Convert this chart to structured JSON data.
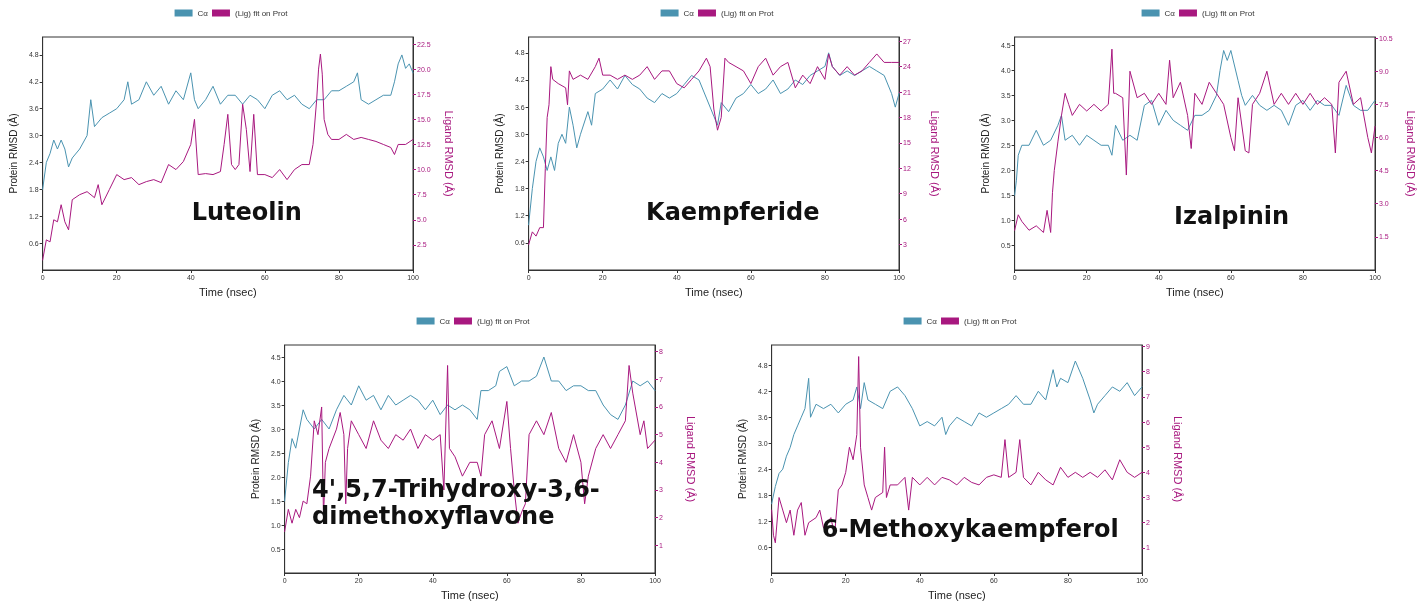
{
  "chart_data": [
    {
      "type": "line",
      "xlabel": "Time (nsec)",
      "ylabel": "Protein RMSD (Å)",
      "y2label": "Ligand RMSD (Å)",
      "annotations": [
        "Luteolin"
      ],
      "legend": "top",
      "grid": false,
      "marker": "none",
      "line_style": "solid",
      "xlim": [
        0,
        100
      ],
      "xticks": [
        0,
        20,
        40,
        60,
        80,
        100
      ],
      "ylim": [
        0,
        5.2
      ],
      "yticks": [
        0.6,
        1.2,
        1.8,
        2.4,
        {
          "value": 3,
          "label": "3.0"
        },
        3.6,
        4.2,
        4.8
      ],
      "y2lim": [
        0,
        23.2
      ],
      "y2ticks": [
        2.5,
        {
          "value": 5,
          "label": "5.0"
        },
        7.5,
        {
          "value": 10,
          "label": "10.0"
        },
        12.5,
        {
          "value": 15,
          "label": "15.0"
        },
        17.5,
        {
          "value": 20,
          "label": "20.0"
        },
        22.5
      ],
      "series": [
        {
          "name": "Cα",
          "color": "#4a93b0",
          "x": [
            0,
            1,
            2,
            3,
            4,
            5,
            6,
            7,
            8,
            10,
            12,
            13,
            14,
            16,
            18,
            20,
            22,
            23,
            24,
            26,
            28,
            30,
            32,
            34,
            36,
            38,
            40,
            41,
            42,
            44,
            46,
            48,
            50,
            52,
            54,
            56,
            58,
            60,
            62,
            64,
            66,
            68,
            70,
            72,
            74,
            76,
            78,
            80,
            82,
            84,
            85,
            86,
            88,
            90,
            92,
            94,
            95,
            96,
            97,
            98,
            99,
            100
          ],
          "values": [
            1.8,
            2.4,
            2.6,
            2.9,
            2.7,
            2.9,
            2.7,
            2.3,
            2.5,
            2.7,
            3.0,
            3.8,
            3.2,
            3.4,
            3.5,
            3.6,
            3.8,
            4.2,
            3.7,
            3.8,
            4.2,
            3.9,
            4.1,
            3.7,
            4.0,
            3.8,
            4.4,
            3.8,
            3.6,
            3.8,
            4.1,
            3.7,
            3.9,
            3.9,
            3.7,
            3.9,
            3.8,
            3.6,
            3.9,
            4.0,
            3.8,
            3.9,
            3.7,
            3.6,
            3.8,
            3.8,
            4.0,
            4.0,
            4.1,
            4.2,
            4.4,
            3.8,
            3.7,
            3.8,
            3.9,
            3.9,
            4.2,
            4.6,
            4.8,
            4.5,
            4.6,
            4.4
          ]
        },
        {
          "name": "(Lig) fit on Prot",
          "color": "#a8187f",
          "axis": "y2",
          "x": [
            0,
            1,
            2,
            3,
            4,
            5,
            6,
            7,
            8,
            10,
            12,
            14,
            15,
            16,
            18,
            20,
            22,
            24,
            26,
            28,
            30,
            32,
            34,
            36,
            38,
            40,
            41,
            42,
            44,
            46,
            48,
            49,
            50,
            51,
            52,
            53,
            54,
            55,
            56,
            57,
            58,
            60,
            62,
            64,
            66,
            68,
            70,
            72,
            73,
            74,
            74.5,
            75,
            75.5,
            76,
            77,
            78,
            80,
            82,
            84,
            86,
            88,
            90,
            92,
            94,
            95,
            96,
            98,
            100
          ],
          "values": [
            1.0,
            3.0,
            2.8,
            5.0,
            4.8,
            6.5,
            4.8,
            4.0,
            7.0,
            7.5,
            7.8,
            7.2,
            8.5,
            6.5,
            8.0,
            9.5,
            9.0,
            9.2,
            8.5,
            8.8,
            9.0,
            8.7,
            10.5,
            10.0,
            10.8,
            12.5,
            15.0,
            9.5,
            9.6,
            9.5,
            9.8,
            12.5,
            15.5,
            10.5,
            10.0,
            10.5,
            16.5,
            14.0,
            9.8,
            15.5,
            9.5,
            9.5,
            9.2,
            10.0,
            9.0,
            10.0,
            10.5,
            10.5,
            12.5,
            17.0,
            20.0,
            21.5,
            19.5,
            15.0,
            13.5,
            13.0,
            13.0,
            13.5,
            13.0,
            13.2,
            13.0,
            12.8,
            12.5,
            12.2,
            11.5,
            12.5,
            12.5,
            13.0
          ]
        }
      ]
    },
    {
      "type": "line",
      "xlabel": "Time (nsec)",
      "ylabel": "Protein RMSD (Å)",
      "y2label": "Ligand RMSD (Å)",
      "annotations": [
        "Kaempferide"
      ],
      "legend": "top",
      "grid": false,
      "marker": "none",
      "line_style": "solid",
      "xlim": [
        0,
        100
      ],
      "xticks": [
        0,
        20,
        40,
        60,
        80,
        100
      ],
      "ylim": [
        0,
        5.15
      ],
      "yticks": [
        0.6,
        1.2,
        1.8,
        2.4,
        {
          "value": 3,
          "label": "3.0"
        },
        3.6,
        4.2,
        4.8
      ],
      "y2lim": [
        0,
        27.5
      ],
      "y2ticks": [
        3,
        6,
        9,
        12,
        15,
        18,
        21,
        24,
        27
      ],
      "series": [
        {
          "name": "Cα",
          "color": "#4a93b0",
          "x": [
            0,
            1,
            2,
            3,
            4,
            5,
            6,
            7,
            8,
            9,
            10,
            11,
            12,
            13,
            14,
            16,
            17,
            18,
            20,
            22,
            24,
            26,
            28,
            30,
            32,
            34,
            36,
            38,
            40,
            42,
            44,
            46,
            48,
            50,
            51,
            52,
            54,
            56,
            58,
            60,
            62,
            64,
            66,
            68,
            70,
            72,
            74,
            76,
            78,
            80,
            81,
            82,
            84,
            86,
            88,
            90,
            92,
            94,
            96,
            98,
            99,
            100
          ],
          "values": [
            1.0,
            1.8,
            2.4,
            2.7,
            2.5,
            2.2,
            2.5,
            2.2,
            2.8,
            3.0,
            2.8,
            3.6,
            3.2,
            2.7,
            3.0,
            3.5,
            3.2,
            3.9,
            4.0,
            4.2,
            4.0,
            4.3,
            4.1,
            4.0,
            3.8,
            3.7,
            3.9,
            3.8,
            3.9,
            4.1,
            4.3,
            4.2,
            3.8,
            3.4,
            3.2,
            3.7,
            3.5,
            3.8,
            3.9,
            4.1,
            3.9,
            4.0,
            4.2,
            3.9,
            4.0,
            4.2,
            4.1,
            4.3,
            4.4,
            4.5,
            4.8,
            4.5,
            4.3,
            4.4,
            4.3,
            4.4,
            4.5,
            4.4,
            4.3,
            3.9,
            3.6,
            3.9
          ]
        },
        {
          "name": "(Lig) fit on Prot",
          "color": "#a8187f",
          "axis": "y2",
          "x": [
            0,
            1,
            2,
            3,
            4,
            4.5,
            5,
            5.5,
            6,
            6.5,
            8,
            10,
            10.5,
            11,
            12,
            14,
            16,
            18,
            19,
            20,
            22,
            24,
            26,
            28,
            30,
            32,
            34,
            36,
            38,
            40,
            42,
            44,
            46,
            48,
            49,
            50,
            51,
            52,
            53,
            54,
            56,
            58,
            60,
            62,
            64,
            66,
            68,
            70,
            72,
            74,
            76,
            78,
            80,
            81,
            82,
            84,
            86,
            88,
            90,
            92,
            94,
            96,
            98,
            100
          ],
          "values": [
            3.0,
            4.5,
            4.0,
            5.0,
            5.0,
            12,
            18,
            19.5,
            24.0,
            22.5,
            22.0,
            21.5,
            19.5,
            23.5,
            22.5,
            23.0,
            22.5,
            24.0,
            25.0,
            23.0,
            23.0,
            22.5,
            23.0,
            22.5,
            23.0,
            24.0,
            22.5,
            23.5,
            23.5,
            22.0,
            21.5,
            22.5,
            23.5,
            25.0,
            24.0,
            19.0,
            16.5,
            18.0,
            25.0,
            24.5,
            24.0,
            23.5,
            22.0,
            24.0,
            25.0,
            23.0,
            24.0,
            24.5,
            21.5,
            23.0,
            22.0,
            24.0,
            22.5,
            25.5,
            24.0,
            23.0,
            24.0,
            23.0,
            23.5,
            24.5,
            25.5,
            24.5,
            24.5,
            24.5
          ]
        }
      ]
    },
    {
      "type": "line",
      "xlabel": "Time (nsec)",
      "ylabel": "Protein RMSD (Å)",
      "y2label": "Ligand RMSD (Å)",
      "annotations": [
        "Izalpinin"
      ],
      "legend": "top",
      "grid": false,
      "marker": "none",
      "line_style": "solid",
      "xlim": [
        0,
        100
      ],
      "xticks": [
        0,
        20,
        40,
        60,
        80,
        100
      ],
      "ylim": [
        0,
        4.67
      ],
      "yticks": [
        0.5,
        {
          "value": 1,
          "label": "1.0"
        },
        1.5,
        {
          "value": 2,
          "label": "2.0"
        },
        2.5,
        {
          "value": 3,
          "label": "3.0"
        },
        3.5,
        {
          "value": 4,
          "label": "4.0"
        },
        4.5
      ],
      "y2lim": [
        0,
        10.55
      ],
      "y2ticks": [
        1.5,
        {
          "value": 3,
          "label": "3.0"
        },
        4.5,
        {
          "value": 6,
          "label": "6.0"
        },
        7.5,
        {
          "value": 9,
          "label": "9.0"
        },
        10.5
      ],
      "series": [
        {
          "name": "Cα",
          "color": "#4a93b0",
          "x": [
            0,
            0.5,
            1,
            2,
            4,
            6,
            8,
            10,
            12,
            13,
            14,
            16,
            18,
            20,
            22,
            24,
            26,
            27,
            28,
            30,
            32,
            34,
            36,
            38,
            40,
            42,
            44,
            46,
            48,
            50,
            52,
            54,
            56,
            57,
            58,
            59,
            60,
            62,
            63,
            64,
            66,
            68,
            70,
            72,
            74,
            76,
            78,
            80,
            82,
            84,
            86,
            88,
            90,
            92,
            94,
            96,
            98,
            100
          ],
          "values": [
            1.5,
            1.8,
            2.3,
            2.5,
            2.5,
            2.8,
            2.5,
            2.6,
            2.9,
            3.1,
            2.6,
            2.7,
            2.5,
            2.7,
            2.6,
            2.5,
            2.5,
            2.3,
            2.9,
            2.6,
            2.7,
            2.6,
            3.3,
            3.4,
            2.9,
            3.2,
            3.0,
            2.9,
            2.8,
            3.1,
            3.1,
            3.2,
            3.5,
            4.0,
            4.4,
            4.2,
            4.4,
            3.8,
            3.5,
            3.3,
            3.5,
            3.3,
            3.2,
            3.3,
            3.2,
            2.9,
            3.3,
            3.4,
            3.2,
            3.4,
            3.3,
            3.3,
            3.1,
            3.7,
            3.3,
            3.2,
            3.2,
            3.4
          ]
        },
        {
          "name": "(Lig) fit on Prot",
          "color": "#a8187f",
          "axis": "y2",
          "x": [
            0,
            1,
            2,
            4,
            6,
            8,
            9,
            10,
            10.5,
            11,
            12,
            13,
            14,
            15,
            16,
            18,
            20,
            22,
            24,
            26,
            27,
            27.5,
            28,
            30,
            31,
            32,
            34,
            36,
            38,
            40,
            42,
            43,
            44,
            46,
            48,
            49,
            50,
            52,
            54,
            56,
            58,
            60,
            61,
            62,
            64,
            65,
            66,
            68,
            70,
            72,
            74,
            76,
            78,
            80,
            82,
            84,
            86,
            88,
            89,
            90,
            92,
            94,
            96,
            98,
            99,
            100
          ],
          "values": [
            1.8,
            2.5,
            2.2,
            1.8,
            2.0,
            1.7,
            2.7,
            1.7,
            3.5,
            4.5,
            5.8,
            7.0,
            8.0,
            7.5,
            7.0,
            7.5,
            7.2,
            7.5,
            7.2,
            7.5,
            10.0,
            8.0,
            8.0,
            7.8,
            4.3,
            9.0,
            7.8,
            8.0,
            7.5,
            8.0,
            7.5,
            9.5,
            7.8,
            8.5,
            7.0,
            5.5,
            8.0,
            7.5,
            8.5,
            8.0,
            7.5,
            6.0,
            5.4,
            7.8,
            5.4,
            5.3,
            7.5,
            8.0,
            9.0,
            7.5,
            8.0,
            7.5,
            8.0,
            7.5,
            8.0,
            7.5,
            7.8,
            7.5,
            5.3,
            8.5,
            9.0,
            7.5,
            7.8,
            6.0,
            5.3,
            6.5
          ]
        }
      ]
    },
    {
      "type": "line",
      "xlabel": "Time (nsec)",
      "ylabel": "Protein RMSD (Å)",
      "y2label": "Ligand RMSD (Å)",
      "annotations": [
        "4',5,7-Trihydroxy-3,6-\ndimethoxyflavone"
      ],
      "legend": "top",
      "grid": false,
      "marker": "none",
      "line_style": "solid",
      "xlim": [
        0,
        100
      ],
      "xticks": [
        0,
        20,
        40,
        60,
        80,
        100
      ],
      "ylim": [
        0,
        4.75
      ],
      "yticks": [
        0.5,
        {
          "value": 1,
          "label": "1.0"
        },
        1.5,
        {
          "value": 2,
          "label": "2.0"
        },
        2.5,
        {
          "value": 3,
          "label": "3.0"
        },
        3.5,
        {
          "value": 4,
          "label": "4.0"
        },
        4.5
      ],
      "y2lim": [
        0,
        8.24
      ],
      "y2ticks": [
        1,
        2,
        3,
        4,
        5,
        6,
        7,
        8
      ],
      "series": [
        {
          "name": "Cα",
          "color": "#4a93b0",
          "x": [
            0,
            1,
            2,
            3,
            4,
            5,
            6,
            8,
            10,
            12,
            14,
            16,
            18,
            20,
            22,
            24,
            26,
            28,
            30,
            32,
            34,
            36,
            38,
            40,
            42,
            44,
            46,
            48,
            50,
            52,
            53,
            55,
            57,
            58,
            60,
            62,
            64,
            66,
            68,
            70,
            72,
            74,
            76,
            78,
            80,
            82,
            84,
            86,
            88,
            90,
            92,
            94,
            96,
            98,
            100
          ],
          "values": [
            1.5,
            2.3,
            2.8,
            2.6,
            3.0,
            3.4,
            3.2,
            3.0,
            3.2,
            3.0,
            3.4,
            3.7,
            3.5,
            3.9,
            3.6,
            3.7,
            3.4,
            3.7,
            3.5,
            3.6,
            3.7,
            3.6,
            3.4,
            3.6,
            3.3,
            3.5,
            3.4,
            3.5,
            3.4,
            3.2,
            3.8,
            3.8,
            3.9,
            4.2,
            4.3,
            3.9,
            4.0,
            4.0,
            4.1,
            4.5,
            4.0,
            4.0,
            3.8,
            3.9,
            3.9,
            3.8,
            3.8,
            3.5,
            3.3,
            3.2,
            3.5,
            4.0,
            3.9,
            4.0,
            3.8
          ]
        },
        {
          "name": "(Lig) fit on Prot",
          "color": "#a8187f",
          "axis": "y2",
          "x": [
            0,
            1,
            2,
            3,
            4,
            5,
            6,
            7,
            8,
            9,
            10,
            10.5,
            11,
            12,
            14,
            15,
            16,
            16.5,
            17,
            18,
            20,
            22,
            24,
            26,
            28,
            30,
            32,
            34,
            36,
            38,
            40,
            42,
            43,
            44,
            44.5,
            46,
            48,
            50,
            52,
            53,
            54,
            56,
            58,
            60,
            61,
            62,
            63,
            64,
            65,
            66,
            68,
            70,
            72,
            74,
            76,
            78,
            80,
            81,
            82,
            84,
            86,
            88,
            90,
            92,
            93,
            94,
            96,
            97,
            98,
            100
          ],
          "values": [
            1.5,
            2.3,
            1.8,
            2.3,
            2.0,
            2.6,
            2.5,
            3.5,
            5.5,
            5.0,
            6.0,
            2.0,
            4.0,
            4.5,
            5.2,
            5.8,
            5.0,
            2.5,
            4.5,
            5.5,
            5.0,
            4.5,
            5.5,
            4.8,
            4.5,
            5.0,
            4.8,
            5.2,
            4.5,
            5.0,
            4.8,
            5.0,
            3.0,
            7.5,
            4.5,
            4.2,
            3.5,
            4.0,
            4.0,
            3.5,
            5.0,
            5.5,
            4.5,
            6.2,
            4.5,
            3.0,
            1.8,
            2.2,
            2.5,
            5.0,
            5.5,
            5.0,
            5.8,
            4.5,
            4.0,
            5.0,
            4.0,
            2.5,
            3.5,
            4.5,
            5.0,
            4.5,
            5.0,
            5.5,
            7.5,
            6.5,
            5.0,
            5.5,
            4.5,
            4.8
          ]
        }
      ]
    },
    {
      "type": "line",
      "xlabel": "Time (nsec)",
      "ylabel": "Protein RMSD (Å)",
      "y2label": "Ligand RMSD (Å)",
      "annotations": [
        "6-Methoxykaempferol"
      ],
      "legend": "top",
      "grid": false,
      "marker": "none",
      "line_style": "solid",
      "xlim": [
        0,
        100
      ],
      "xticks": [
        0,
        20,
        40,
        60,
        80,
        100
      ],
      "ylim": [
        0,
        5.27
      ],
      "yticks": [
        0.6,
        1.2,
        1.8,
        2.4,
        {
          "value": 3,
          "label": "3.0"
        },
        3.6,
        4.2,
        4.8
      ],
      "y2lim": [
        0,
        9.06
      ],
      "y2ticks": [
        1,
        2,
        3,
        4,
        5,
        6,
        7,
        8,
        9
      ],
      "series": [
        {
          "name": "Cα",
          "color": "#4a93b0",
          "x": [
            0,
            1,
            2,
            3,
            4,
            5,
            6,
            7,
            8,
            9,
            10,
            10.5,
            12,
            14,
            16,
            18,
            20,
            22,
            23,
            24,
            25,
            26,
            28,
            30,
            32,
            34,
            36,
            38,
            40,
            42,
            44,
            46,
            47,
            48,
            50,
            52,
            54,
            56,
            58,
            60,
            62,
            64,
            66,
            68,
            70,
            72,
            74,
            76,
            77,
            78,
            80,
            82,
            84,
            86,
            87,
            88,
            90,
            92,
            94,
            96,
            98,
            100
          ],
          "values": [
            1.6,
            2.0,
            2.3,
            2.4,
            2.7,
            2.9,
            3.2,
            3.4,
            3.6,
            3.8,
            4.5,
            3.6,
            3.9,
            3.8,
            3.9,
            3.7,
            3.9,
            4.0,
            4.3,
            3.8,
            4.4,
            4.0,
            3.9,
            3.8,
            4.2,
            4.3,
            4.1,
            3.8,
            3.4,
            3.5,
            3.4,
            3.6,
            3.2,
            3.4,
            3.6,
            3.5,
            3.4,
            3.7,
            3.6,
            3.7,
            3.8,
            3.9,
            4.1,
            3.9,
            3.9,
            4.2,
            4.0,
            4.7,
            4.3,
            4.5,
            4.4,
            4.9,
            4.5,
            4.0,
            3.7,
            3.9,
            4.1,
            4.3,
            4.2,
            4.4,
            4.1,
            4.3
          ]
        },
        {
          "name": "(Lig) fit on Prot",
          "color": "#a8187f",
          "axis": "y2",
          "x": [
            0,
            0.5,
            1,
            2,
            3,
            4,
            5,
            6,
            7,
            8,
            9,
            10,
            12,
            13,
            14,
            16,
            17,
            18,
            19,
            20,
            21,
            22,
            23,
            23.5,
            24,
            25,
            26,
            27,
            28,
            30,
            30.5,
            31,
            32,
            34,
            36,
            37,
            38,
            40,
            42,
            44,
            46,
            48,
            50,
            52,
            54,
            56,
            58,
            60,
            62,
            63,
            64,
            66,
            67,
            68,
            70,
            72,
            74,
            76,
            78,
            80,
            82,
            84,
            86,
            88,
            90,
            92,
            94,
            96,
            98,
            100
          ],
          "values": [
            2.5,
            1.5,
            1.2,
            3.0,
            2.5,
            2.0,
            2.5,
            1.5,
            2.5,
            2.8,
            1.5,
            2.0,
            2.2,
            2.5,
            1.8,
            2.2,
            1.5,
            3.3,
            3.5,
            4.0,
            5.0,
            4.5,
            5.5,
            8.6,
            5.0,
            3.5,
            3.0,
            2.5,
            3.0,
            3.2,
            5.0,
            3.0,
            3.5,
            3.5,
            3.8,
            2.5,
            3.8,
            3.5,
            3.8,
            3.5,
            3.8,
            3.7,
            3.5,
            3.8,
            3.6,
            3.5,
            3.8,
            3.9,
            3.8,
            5.3,
            3.8,
            4.0,
            5.3,
            3.8,
            3.5,
            4.0,
            3.7,
            3.5,
            4.2,
            3.8,
            4.0,
            3.8,
            4.0,
            3.8,
            4.1,
            3.7,
            4.5,
            4.0,
            3.8,
            4.0
          ]
        }
      ]
    }
  ]
}
